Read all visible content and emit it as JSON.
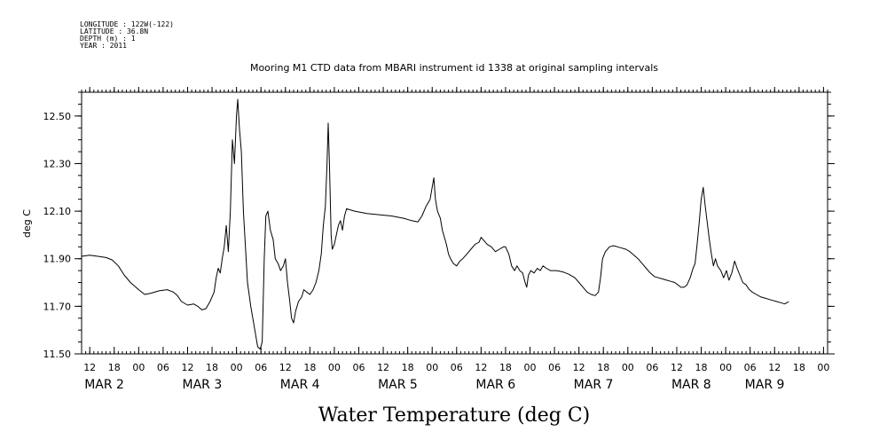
{
  "metadata": {
    "lines": [
      "LONGITUDE : 122W(-122)",
      "LATITUDE : 36.8N",
      "DEPTH (m) : 1",
      "YEAR : 2011"
    ]
  },
  "chart_data": {
    "type": "line",
    "title": "Mooring M1 CTD data from MBARI instrument id 1338 at original sampling intervals",
    "xlabel": "Water Temperature (deg C)",
    "ylabel": "deg C",
    "ylim": [
      11.5,
      12.6
    ],
    "xlim": [
      10,
      193
    ],
    "y_ticks": [
      "11.50",
      "11.70",
      "11.90",
      "12.10",
      "12.30",
      "12.50"
    ],
    "y_tick_values": [
      11.5,
      11.7,
      11.9,
      12.1,
      12.3,
      12.5
    ],
    "hour_ticks": [
      "12",
      "18",
      "00",
      "06",
      "12",
      "18",
      "00",
      "06",
      "12",
      "18",
      "00",
      "06",
      "12",
      "18",
      "00",
      "06",
      "12",
      "18",
      "00",
      "06",
      "12",
      "18",
      "00",
      "06",
      "12",
      "18",
      "00",
      "06",
      "12",
      "18",
      "00",
      "06"
    ],
    "hour_tick_values": [
      12,
      18,
      24,
      30,
      36,
      42,
      48,
      54,
      60,
      66,
      72,
      78,
      84,
      90,
      96,
      102,
      108,
      114,
      120,
      126,
      132,
      138,
      144,
      150,
      156,
      162,
      168,
      174,
      180,
      186,
      192,
      198
    ],
    "date_labels": [
      "MAR 2",
      "MAR 3",
      "MAR 4",
      "MAR 5",
      "MAR 6",
      "MAR 7",
      "MAR 8",
      "MAR 9"
    ],
    "date_positions": [
      12,
      36,
      60,
      84,
      108,
      132,
      156,
      174
    ],
    "series": [
      {
        "color": "#000000",
        "points": [
          [
            10,
            11.91
          ],
          [
            12,
            11.915
          ],
          [
            14,
            11.91
          ],
          [
            16,
            11.905
          ],
          [
            17.5,
            11.895
          ],
          [
            19,
            11.87
          ],
          [
            20.5,
            11.83
          ],
          [
            22,
            11.8
          ],
          [
            24,
            11.77
          ],
          [
            25.5,
            11.75
          ],
          [
            27,
            11.755
          ],
          [
            29,
            11.765
          ],
          [
            31,
            11.77
          ],
          [
            32.5,
            11.76
          ],
          [
            33.5,
            11.745
          ],
          [
            34.5,
            11.72
          ],
          [
            36,
            11.705
          ],
          [
            37.5,
            11.71
          ],
          [
            38.5,
            11.7
          ],
          [
            39.5,
            11.685
          ],
          [
            40.5,
            11.69
          ],
          [
            41.5,
            11.72
          ],
          [
            42.5,
            11.76
          ],
          [
            43,
            11.82
          ],
          [
            43.5,
            11.86
          ],
          [
            44,
            11.84
          ],
          [
            44.5,
            11.9
          ],
          [
            45,
            11.95
          ],
          [
            45.5,
            12.04
          ],
          [
            46,
            11.93
          ],
          [
            46.5,
            12.1
          ],
          [
            47,
            12.4
          ],
          [
            47.5,
            12.3
          ],
          [
            48,
            12.5
          ],
          [
            48.3,
            12.57
          ],
          [
            48.7,
            12.45
          ],
          [
            49.2,
            12.35
          ],
          [
            49.7,
            12.1
          ],
          [
            50.2,
            11.95
          ],
          [
            50.7,
            11.8
          ],
          [
            51.5,
            11.7
          ],
          [
            52.5,
            11.6
          ],
          [
            53.2,
            11.53
          ],
          [
            53.8,
            11.52
          ],
          [
            54.3,
            11.55
          ],
          [
            54.8,
            11.9
          ],
          [
            55.2,
            12.08
          ],
          [
            55.7,
            12.1
          ],
          [
            56.3,
            12.02
          ],
          [
            57,
            11.98
          ],
          [
            57.5,
            11.9
          ],
          [
            58.2,
            11.88
          ],
          [
            58.8,
            11.85
          ],
          [
            59.5,
            11.87
          ],
          [
            60,
            11.9
          ],
          [
            60.5,
            11.8
          ],
          [
            61,
            11.73
          ],
          [
            61.5,
            11.65
          ],
          [
            62,
            11.63
          ],
          [
            62.5,
            11.68
          ],
          [
            63.2,
            11.72
          ],
          [
            64,
            11.74
          ],
          [
            64.5,
            11.77
          ],
          [
            65.2,
            11.76
          ],
          [
            66,
            11.75
          ],
          [
            66.8,
            11.77
          ],
          [
            67.5,
            11.8
          ],
          [
            68.2,
            11.85
          ],
          [
            68.8,
            11.92
          ],
          [
            69.3,
            12.04
          ],
          [
            69.8,
            12.12
          ],
          [
            70.2,
            12.3
          ],
          [
            70.5,
            12.47
          ],
          [
            70.8,
            12.3
          ],
          [
            71.2,
            12.0
          ],
          [
            71.5,
            11.94
          ],
          [
            72,
            11.96
          ],
          [
            72.5,
            12.0
          ],
          [
            73,
            12.04
          ],
          [
            73.5,
            12.06
          ],
          [
            74,
            12.02
          ],
          [
            74.5,
            12.08
          ],
          [
            75,
            12.11
          ],
          [
            77,
            12.1
          ],
          [
            80,
            12.09
          ],
          [
            83,
            12.085
          ],
          [
            86,
            12.08
          ],
          [
            89,
            12.07
          ],
          [
            91,
            12.06
          ],
          [
            92.5,
            12.055
          ],
          [
            93.5,
            12.08
          ],
          [
            94.5,
            12.12
          ],
          [
            95.5,
            12.15
          ],
          [
            96,
            12.2
          ],
          [
            96.4,
            12.24
          ],
          [
            96.8,
            12.15
          ],
          [
            97.3,
            12.1
          ],
          [
            98,
            12.07
          ],
          [
            98.5,
            12.02
          ],
          [
            99,
            11.99
          ],
          [
            99.5,
            11.96
          ],
          [
            100,
            11.92
          ],
          [
            100.5,
            11.9
          ],
          [
            101.2,
            11.88
          ],
          [
            102,
            11.87
          ],
          [
            102.8,
            11.89
          ],
          [
            103.5,
            11.9
          ],
          [
            104.5,
            11.92
          ],
          [
            105.5,
            11.94
          ],
          [
            106.5,
            11.96
          ],
          [
            107.5,
            11.97
          ],
          [
            108,
            11.99
          ],
          [
            108.5,
            11.98
          ],
          [
            109.5,
            11.96
          ],
          [
            110.5,
            11.95
          ],
          [
            111.5,
            11.93
          ],
          [
            112.5,
            11.94
          ],
          [
            113.5,
            11.95
          ],
          [
            114,
            11.95
          ],
          [
            114.8,
            11.92
          ],
          [
            115.5,
            11.87
          ],
          [
            116.2,
            11.85
          ],
          [
            116.8,
            11.87
          ],
          [
            117.5,
            11.85
          ],
          [
            118.2,
            11.84
          ],
          [
            118.8,
            11.8
          ],
          [
            119.2,
            11.78
          ],
          [
            119.6,
            11.83
          ],
          [
            120.2,
            11.85
          ],
          [
            121,
            11.84
          ],
          [
            121.8,
            11.86
          ],
          [
            122.5,
            11.85
          ],
          [
            123.2,
            11.87
          ],
          [
            124,
            11.86
          ],
          [
            125,
            11.85
          ],
          [
            126.5,
            11.85
          ],
          [
            128,
            11.845
          ],
          [
            129.5,
            11.835
          ],
          [
            131,
            11.82
          ],
          [
            132,
            11.8
          ],
          [
            133,
            11.78
          ],
          [
            134,
            11.76
          ],
          [
            135,
            11.75
          ],
          [
            136,
            11.745
          ],
          [
            136.8,
            11.76
          ],
          [
            137.3,
            11.82
          ],
          [
            137.8,
            11.9
          ],
          [
            138.5,
            11.93
          ],
          [
            139.5,
            11.95
          ],
          [
            140.5,
            11.955
          ],
          [
            141.5,
            11.95
          ],
          [
            142.5,
            11.945
          ],
          [
            143.5,
            11.94
          ],
          [
            144.5,
            11.93
          ],
          [
            145.5,
            11.915
          ],
          [
            146.5,
            11.9
          ],
          [
            147.5,
            11.88
          ],
          [
            148.5,
            11.86
          ],
          [
            149.5,
            11.84
          ],
          [
            150.5,
            11.825
          ],
          [
            151.5,
            11.82
          ],
          [
            152.5,
            11.815
          ],
          [
            153.5,
            11.81
          ],
          [
            154.5,
            11.805
          ],
          [
            155.5,
            11.8
          ],
          [
            156.3,
            11.79
          ],
          [
            157,
            11.78
          ],
          [
            157.8,
            11.78
          ],
          [
            158.5,
            11.79
          ],
          [
            159.3,
            11.82
          ],
          [
            160,
            11.86
          ],
          [
            160.5,
            11.88
          ],
          [
            161,
            11.96
          ],
          [
            161.5,
            12.05
          ],
          [
            162,
            12.15
          ],
          [
            162.5,
            12.2
          ],
          [
            163,
            12.12
          ],
          [
            163.5,
            12.05
          ],
          [
            164,
            11.98
          ],
          [
            164.5,
            11.92
          ],
          [
            165,
            11.87
          ],
          [
            165.5,
            11.9
          ],
          [
            166,
            11.87
          ],
          [
            166.8,
            11.85
          ],
          [
            167.5,
            11.82
          ],
          [
            168.2,
            11.85
          ],
          [
            168.8,
            11.81
          ],
          [
            169.5,
            11.84
          ],
          [
            170.2,
            11.89
          ],
          [
            170.8,
            11.86
          ],
          [
            171.5,
            11.83
          ],
          [
            172.2,
            11.8
          ],
          [
            173,
            11.79
          ],
          [
            173.8,
            11.77
          ],
          [
            174.5,
            11.76
          ],
          [
            175.5,
            11.75
          ],
          [
            176.5,
            11.74
          ],
          [
            177.5,
            11.735
          ],
          [
            178.5,
            11.73
          ],
          [
            179.5,
            11.725
          ],
          [
            180.5,
            11.72
          ],
          [
            181.5,
            11.715
          ],
          [
            182.5,
            11.71
          ],
          [
            183.5,
            11.72
          ]
        ]
      }
    ]
  }
}
